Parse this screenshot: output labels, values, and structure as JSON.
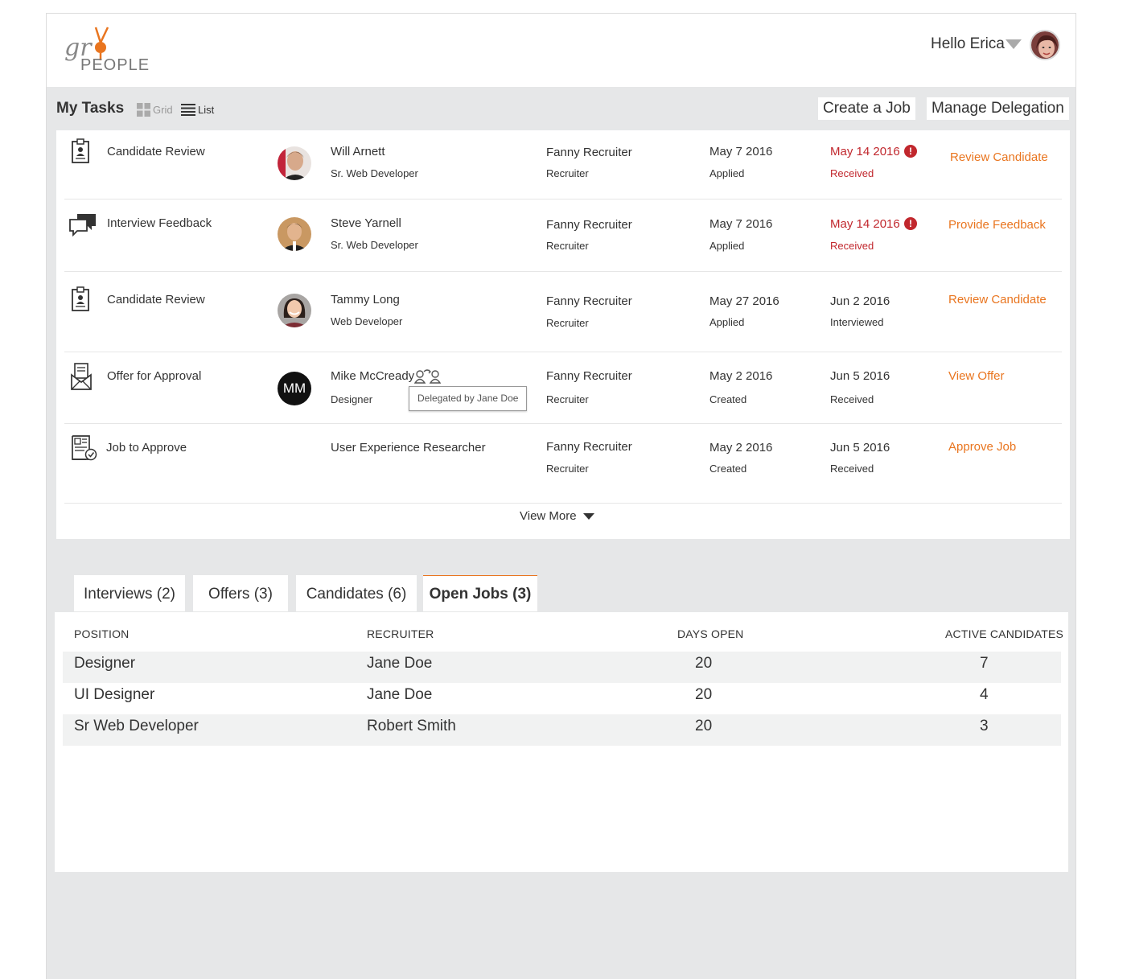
{
  "header": {
    "logo_top": "gr",
    "logo_bottom": "PEOPLE",
    "greeting": "Hello Erica"
  },
  "tasks_bar": {
    "title": "My Tasks",
    "grid_label": "Grid",
    "list_label": "List",
    "create_job": "Create a Job",
    "manage_delegation": "Manage Delegation"
  },
  "tasks": [
    {
      "type": "Candidate Review",
      "icon": "clipboard-icon",
      "name": "Will Arnett",
      "role": "Sr. Web Developer",
      "recruiter": "Fanny Recruiter",
      "recruiter_role": "Recruiter",
      "date1": "May 7 2016",
      "date1_label": "Applied",
      "date2": "May 14 2016",
      "date2_label": "Received",
      "overdue": true,
      "action": "Review Candidate"
    },
    {
      "type": "Interview Feedback",
      "icon": "chat-icon",
      "name": "Steve Yarnell",
      "role": "Sr. Web Developer",
      "recruiter": "Fanny Recruiter",
      "recruiter_role": "Recruiter",
      "date1": "May 7 2016",
      "date1_label": "Applied",
      "date2": "May 14 2016",
      "date2_label": "Received",
      "overdue": true,
      "action": "Provide Feedback"
    },
    {
      "type": "Candidate Review",
      "icon": "clipboard-icon",
      "name": "Tammy Long",
      "role": "Web Developer",
      "recruiter": "Fanny Recruiter",
      "recruiter_role": "Recruiter",
      "date1": "May 27 2016",
      "date1_label": "Applied",
      "date2": "Jun 2 2016",
      "date2_label": "Interviewed",
      "overdue": false,
      "action": "Review Candidate"
    },
    {
      "type": "Offer for Approval",
      "icon": "envelope-icon",
      "name": "Mike McCready",
      "initials": "MM",
      "role": "Designer",
      "recruiter": "Fanny Recruiter",
      "recruiter_role": "Recruiter",
      "date1": "May 2 2016",
      "date1_label": "Created",
      "date2": "Jun 5 2016",
      "date2_label": "Received",
      "overdue": false,
      "action": "View Offer",
      "tooltip": "Delegated by Jane Doe"
    },
    {
      "type": "Job to Approve",
      "icon": "job-approve-icon",
      "name": "User Experience Researcher",
      "recruiter": "Fanny Recruiter",
      "recruiter_role": "Recruiter",
      "date1": "May 2 2016",
      "date1_label": "Created",
      "date2": "Jun 5 2016",
      "date2_label": "Received",
      "overdue": false,
      "action": "Approve Job"
    }
  ],
  "view_more": "View More",
  "tabs": [
    {
      "label": "Interviews (2)"
    },
    {
      "label": "Offers (3)"
    },
    {
      "label": "Candidates (6)"
    },
    {
      "label": "Open Jobs (3)",
      "active": true
    }
  ],
  "jobs_table": {
    "headers": [
      "POSITION",
      "RECRUITER",
      "DAYS OPEN",
      "ACTIVE CANDIDATES"
    ],
    "rows": [
      [
        "Designer",
        "Jane Doe",
        "20",
        "7"
      ],
      [
        "UI Designer",
        "Jane Doe",
        "20",
        "4"
      ],
      [
        "Sr Web Developer",
        "Robert Smith",
        "20",
        "3"
      ]
    ]
  },
  "colors": {
    "accent": "#e9751f",
    "alert": "#c1272d",
    "background": "#e6e7e8",
    "row_shade": "#f1f2f2"
  }
}
